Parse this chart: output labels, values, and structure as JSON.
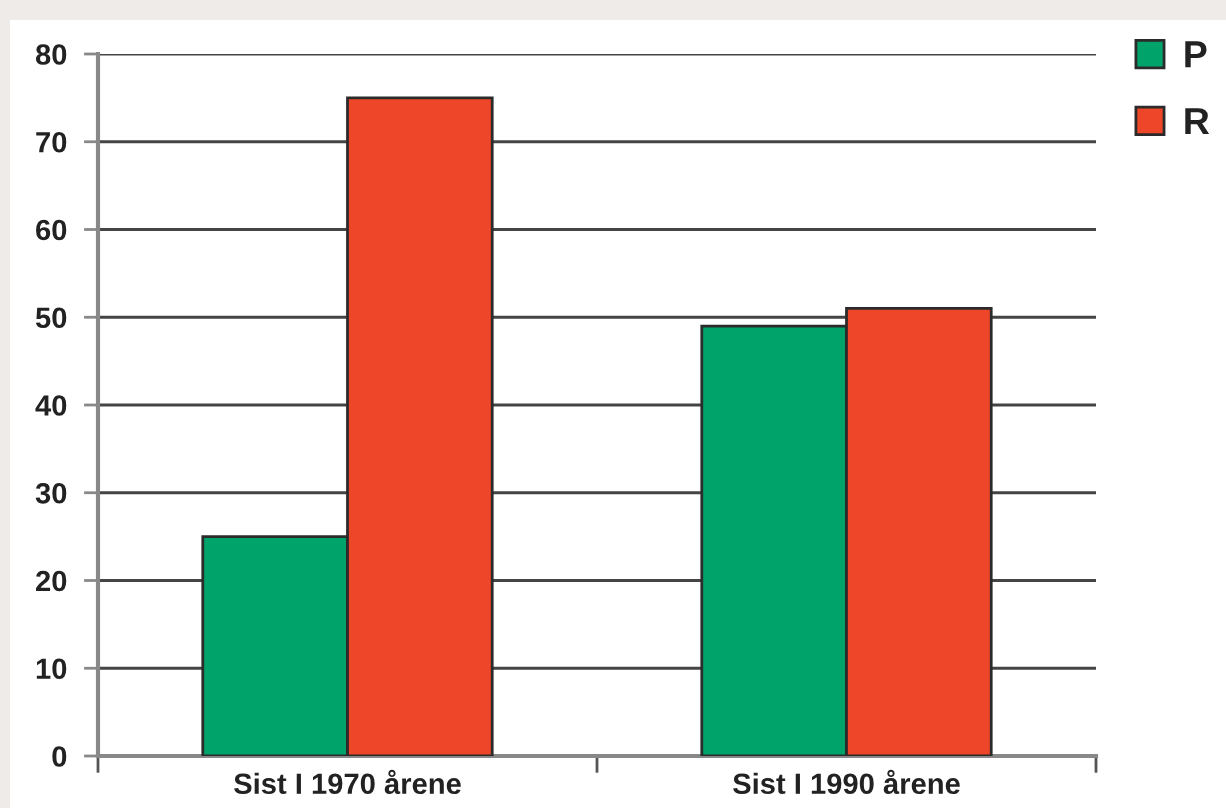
{
  "chart_data": {
    "type": "bar",
    "categories": [
      "Sist I 1970 årene",
      "Sist I 1990 årene"
    ],
    "series": [
      {
        "name": "P",
        "color": "#00a46a",
        "values": [
          25,
          49
        ]
      },
      {
        "name": "R",
        "color": "#ee4628",
        "values": [
          75,
          51
        ]
      }
    ],
    "ylim": [
      0,
      80
    ],
    "yticks": [
      0,
      10,
      20,
      30,
      40,
      50,
      60,
      70,
      80
    ],
    "grid": "y",
    "legend": "top right"
  }
}
